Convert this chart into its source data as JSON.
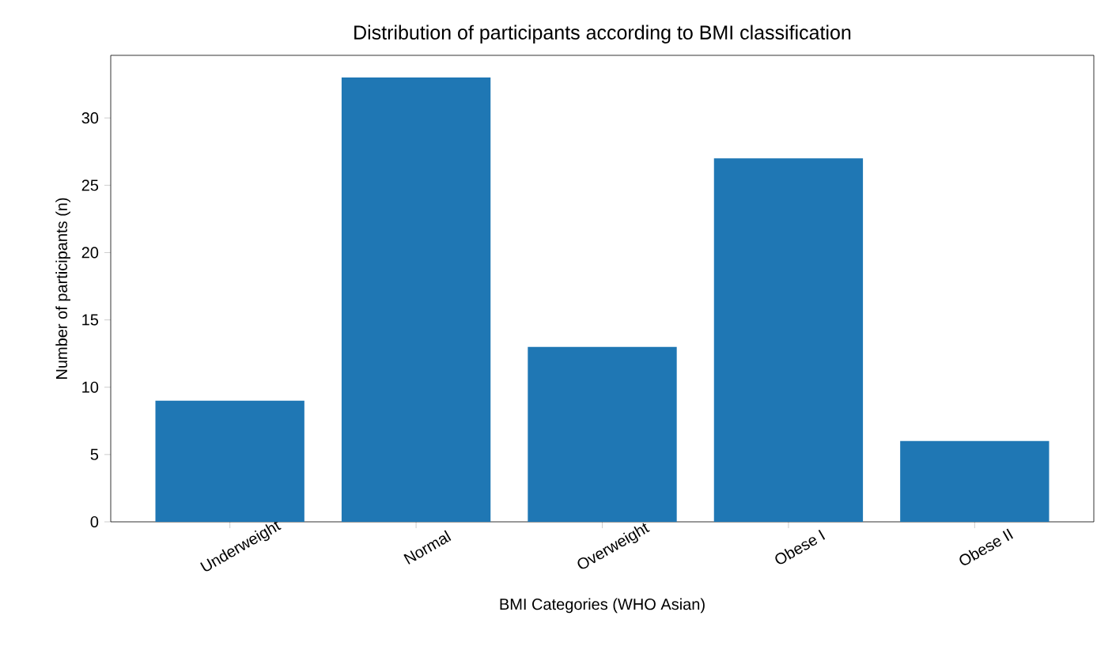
{
  "chart_data": {
    "type": "bar",
    "title": "Distribution of participants according to BMI classification",
    "xlabel": "BMI Categories (WHO Asian)",
    "ylabel": "Number of participants (n)",
    "categories": [
      "Underweight",
      "Normal",
      "Overweight",
      "Obese I",
      "Obese II"
    ],
    "values": [
      9,
      33,
      13,
      27,
      6
    ],
    "color": "#1f77b4",
    "ylim": [
      0,
      34.65
    ],
    "yticks": [
      0,
      5,
      10,
      15,
      20,
      25,
      30
    ],
    "grid": false
  }
}
